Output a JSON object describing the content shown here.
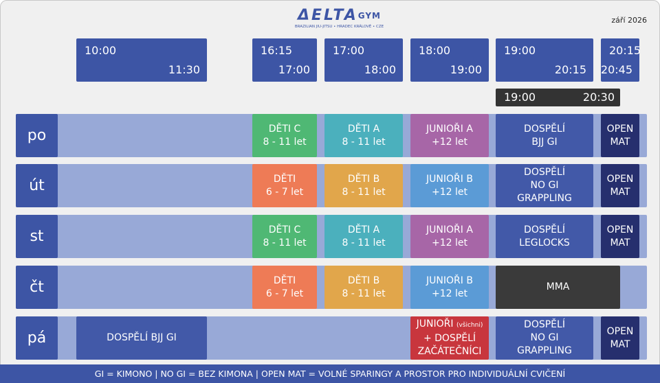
{
  "header": {
    "logo": {
      "name": "ΔELTA",
      "suffix": "GYM",
      "tagline": "BRAZILIAN JIU-JITSU • HRADEC KRÁLOVÉ • CZE"
    },
    "date": "září 2026"
  },
  "times": [
    {
      "start": "10:00",
      "end": "11:30"
    },
    {
      "start": "16:15",
      "end": "17:00"
    },
    {
      "start": "17:00",
      "end": "18:00"
    },
    {
      "start": "18:00",
      "end": "19:00"
    },
    {
      "start": "19:00",
      "end": "20:15"
    },
    {
      "start": "20:15",
      "end": "20:45"
    }
  ],
  "extra_time": {
    "start": "19:00",
    "end": "20:30"
  },
  "days": [
    {
      "label": "po",
      "classes": [
        {
          "lines": [
            "DĚTI C",
            "8 - 11 let"
          ],
          "color": "#4fb874"
        },
        {
          "lines": [
            "DĚTI A",
            "8 - 11 let"
          ],
          "color": "#4bb0bd"
        },
        {
          "lines": [
            "JUNIOŘI A",
            "+12 let"
          ],
          "color": "#a766a7"
        },
        {
          "lines": [
            "DOSPĚLÍ",
            "BJJ GI"
          ],
          "color": "#4259a8"
        },
        {
          "lines": [
            "OPEN",
            "MAT"
          ],
          "color": "#262f6e"
        }
      ]
    },
    {
      "label": "út",
      "classes": [
        {
          "lines": [
            "DĚTI",
            "6 - 7 let"
          ],
          "color": "#ee7b56"
        },
        {
          "lines": [
            "DĚTI B",
            "8 - 11 let"
          ],
          "color": "#e1a64b"
        },
        {
          "lines": [
            "JUNIOŘI B",
            "+12 let"
          ],
          "color": "#5b9bd6"
        },
        {
          "lines": [
            "DOSPĚLÍ",
            "NO GI",
            "GRAPPLING"
          ],
          "color": "#4259a8"
        },
        {
          "lines": [
            "OPEN",
            "MAT"
          ],
          "color": "#262f6e"
        }
      ]
    },
    {
      "label": "st",
      "classes": [
        {
          "lines": [
            "DĚTI C",
            "8 - 11 let"
          ],
          "color": "#4fb874"
        },
        {
          "lines": [
            "DĚTI A",
            "8 - 11 let"
          ],
          "color": "#4bb0bd"
        },
        {
          "lines": [
            "JUNIOŘI A",
            "+12 let"
          ],
          "color": "#a766a7"
        },
        {
          "lines": [
            "DOSPĚLÍ",
            "LEGLOCKS"
          ],
          "color": "#4259a8"
        },
        {
          "lines": [
            "OPEN",
            "MAT"
          ],
          "color": "#262f6e"
        }
      ]
    },
    {
      "label": "čt",
      "classes": [
        {
          "lines": [
            "DĚTI",
            "6 - 7 let"
          ],
          "color": "#ee7b56"
        },
        {
          "lines": [
            "DĚTI B",
            "8 - 11 let"
          ],
          "color": "#e1a64b"
        },
        {
          "lines": [
            "JUNIOŘI B",
            "+12 let"
          ],
          "color": "#5b9bd6"
        },
        {
          "lines": [
            "MMA"
          ],
          "color": "#3a3a3a"
        }
      ]
    },
    {
      "label": "pá",
      "classes": [
        {
          "lines": [
            "DOSPĚLÍ BJJ GI"
          ],
          "color": "#4259a8"
        },
        {
          "lines": [
            "JUNIOŘI",
            "+ DOSPĚLÍ",
            "ZAČÁTEČNÍCI"
          ],
          "note": "(všichni)",
          "color": "#c8363d"
        },
        {
          "lines": [
            "DOSPĚLÍ",
            "NO GI",
            "GRAPPLING"
          ],
          "color": "#4259a8"
        },
        {
          "lines": [
            "OPEN",
            "MAT"
          ],
          "color": "#262f6e"
        }
      ]
    }
  ],
  "footer": "GI = KIMONO | NO GI = BEZ KIMONA | OPEN MAT = VOLNÉ SPARINGY A PROSTOR PRO INDIVIDUÁLNÍ CVIČENÍ"
}
